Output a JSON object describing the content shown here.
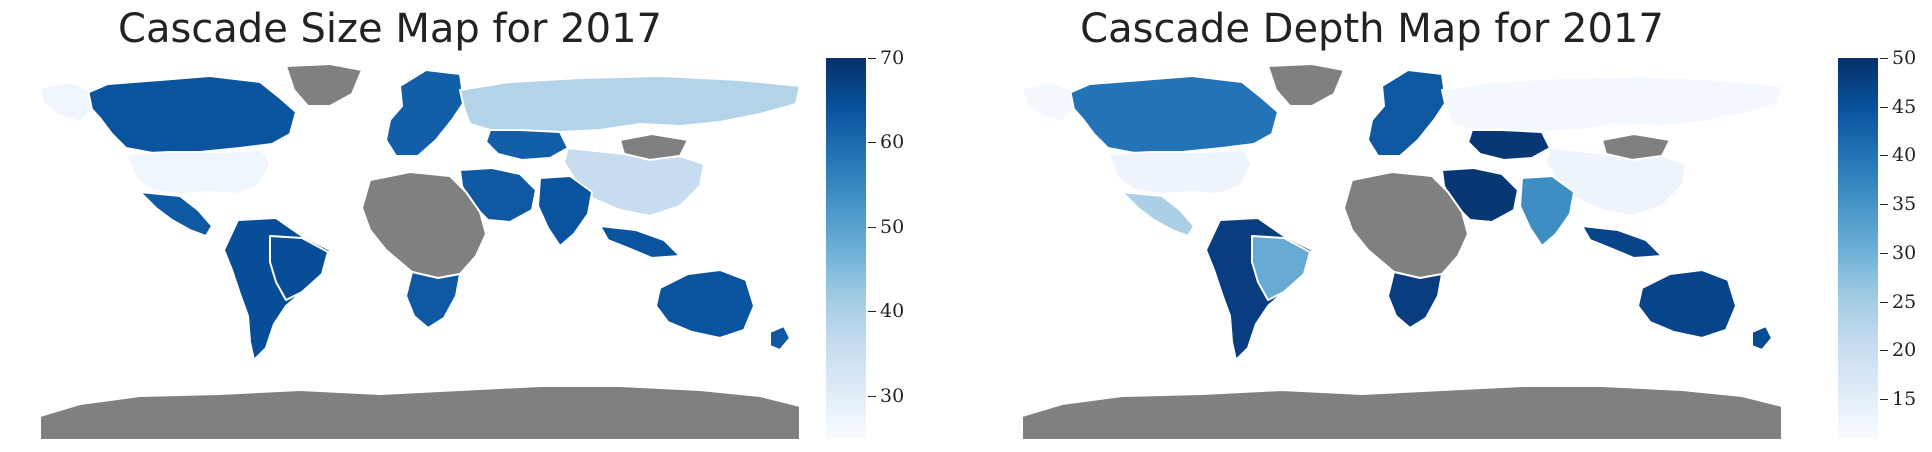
{
  "maps": [
    {
      "title": "Cascade Size Map for 2017",
      "colorbar": {
        "min": 25,
        "max": 70,
        "ticks": [
          30,
          40,
          50,
          60,
          70
        ],
        "colormap": "Blues"
      },
      "missing_color": "#808080",
      "regions": [
        {
          "name": "North America-north",
          "value": 64
        },
        {
          "name": "United States",
          "value": 27
        },
        {
          "name": "Alaska",
          "value": 27
        },
        {
          "name": "Mexico",
          "value": 63
        },
        {
          "name": "South America",
          "value": 65
        },
        {
          "name": "Greenland",
          "value": null
        },
        {
          "name": "Europe",
          "value": 62
        },
        {
          "name": "Russia",
          "value": 39
        },
        {
          "name": "Mongolia",
          "value": null
        },
        {
          "name": "China",
          "value": 36
        },
        {
          "name": "Middle East",
          "value": 63
        },
        {
          "name": "India",
          "value": 64
        },
        {
          "name": "Africa",
          "value": null
        },
        {
          "name": "Southern Africa",
          "value": 63
        },
        {
          "name": "Australia",
          "value": 64
        },
        {
          "name": "New Zealand",
          "value": 63
        },
        {
          "name": "Antarctica",
          "value": null
        }
      ]
    },
    {
      "title": "Cascade Depth Map for 2017",
      "colorbar": {
        "min": 11,
        "max": 50,
        "ticks": [
          15,
          20,
          25,
          30,
          35,
          40,
          45,
          50
        ],
        "colormap": "Blues"
      },
      "missing_color": "#808080",
      "regions": [
        {
          "name": "North America-north",
          "value": 40
        },
        {
          "name": "United States",
          "value": 13
        },
        {
          "name": "Alaska",
          "value": 12
        },
        {
          "name": "Mexico",
          "value": 24
        },
        {
          "name": "South America",
          "value": 48
        },
        {
          "name": "Brazil",
          "value": 31
        },
        {
          "name": "Greenland",
          "value": null
        },
        {
          "name": "Europe",
          "value": 44
        },
        {
          "name": "Russia",
          "value": 12
        },
        {
          "name": "Mongolia",
          "value": null
        },
        {
          "name": "China",
          "value": 13
        },
        {
          "name": "Kazakhstan",
          "value": 49
        },
        {
          "name": "Middle East",
          "value": 49
        },
        {
          "name": "India",
          "value": 36
        },
        {
          "name": "Africa",
          "value": null
        },
        {
          "name": "Southern Africa",
          "value": 48
        },
        {
          "name": "Australia",
          "value": 47
        },
        {
          "name": "New Zealand",
          "value": 46
        },
        {
          "name": "Antarctica",
          "value": null
        }
      ]
    }
  ]
}
